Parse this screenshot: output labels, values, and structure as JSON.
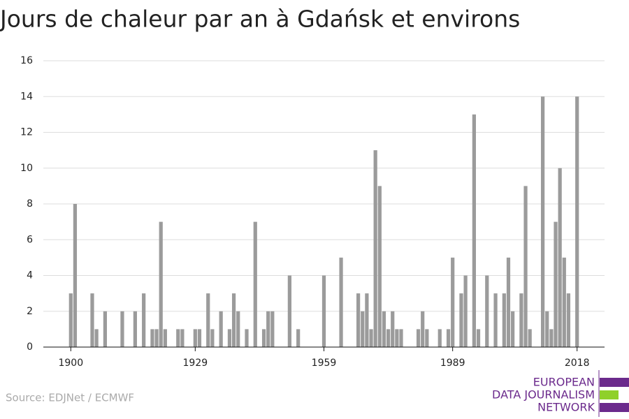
{
  "chart_data": {
    "type": "bar",
    "title": "Jours de chaleur par an à Gdańsk et environs",
    "source": "Source: EDJNet / ECMWF",
    "logo": [
      "EUROPEAN",
      "DATA JOURNALISM",
      "NETWORK"
    ],
    "x": [
      1900,
      1901,
      1902,
      1903,
      1904,
      1905,
      1906,
      1907,
      1908,
      1909,
      1910,
      1911,
      1912,
      1913,
      1914,
      1915,
      1916,
      1917,
      1918,
      1919,
      1920,
      1921,
      1922,
      1923,
      1924,
      1925,
      1926,
      1927,
      1928,
      1929,
      1930,
      1931,
      1932,
      1933,
      1934,
      1935,
      1936,
      1937,
      1938,
      1939,
      1940,
      1941,
      1942,
      1943,
      1944,
      1945,
      1946,
      1947,
      1948,
      1949,
      1950,
      1951,
      1952,
      1953,
      1954,
      1955,
      1956,
      1957,
      1958,
      1959,
      1960,
      1961,
      1962,
      1963,
      1964,
      1965,
      1966,
      1967,
      1968,
      1969,
      1970,
      1971,
      1972,
      1973,
      1974,
      1975,
      1976,
      1977,
      1978,
      1979,
      1980,
      1981,
      1982,
      1983,
      1984,
      1985,
      1986,
      1987,
      1988,
      1989,
      1990,
      1991,
      1992,
      1993,
      1994,
      1995,
      1996,
      1997,
      1998,
      1999,
      2000,
      2001,
      2002,
      2003,
      2004,
      2005,
      2006,
      2007,
      2008,
      2009,
      2010,
      2011,
      2012,
      2013,
      2014,
      2015,
      2016,
      2017,
      2018
    ],
    "values": [
      3,
      8,
      0,
      0,
      0,
      3,
      1,
      0,
      2,
      0,
      0,
      0,
      2,
      0,
      0,
      2,
      0,
      3,
      0,
      1,
      1,
      7,
      1,
      0,
      0,
      1,
      1,
      0,
      0,
      1,
      1,
      0,
      3,
      1,
      0,
      2,
      0,
      1,
      3,
      2,
      0,
      1,
      0,
      7,
      0,
      1,
      2,
      2,
      0,
      0,
      0,
      4,
      0,
      1,
      0,
      0,
      0,
      0,
      0,
      4,
      0,
      0,
      0,
      5,
      0,
      0,
      0,
      3,
      2,
      3,
      1,
      11,
      9,
      2,
      1,
      2,
      1,
      1,
      0,
      0,
      0,
      1,
      2,
      1,
      0,
      0,
      1,
      0,
      1,
      5,
      0,
      3,
      4,
      0,
      13,
      1,
      0,
      4,
      0,
      3,
      0,
      3,
      5,
      2,
      0,
      3,
      9,
      1,
      0,
      0,
      14,
      2,
      1,
      7,
      10,
      5,
      3,
      0,
      14
    ],
    "color": "#9b9b9b",
    "xlim": [
      1893.6,
      2024.4
    ],
    "xticks": [
      1900,
      1929,
      1959,
      1989,
      2018
    ],
    "ylim": [
      0,
      16
    ],
    "yticks": [
      0,
      2,
      4,
      6,
      8,
      10,
      12,
      14,
      16
    ],
    "grid": true
  }
}
